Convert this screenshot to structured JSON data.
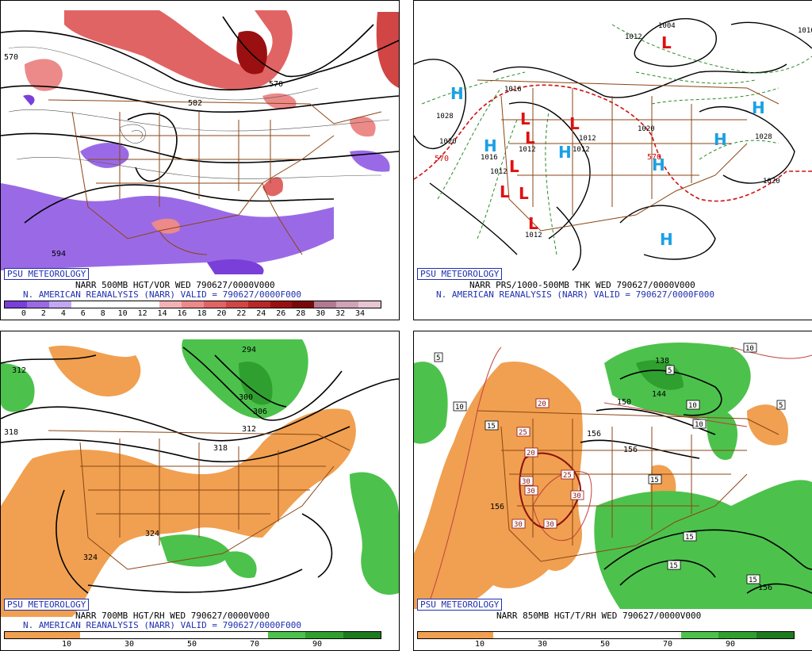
{
  "panels": {
    "p1": {
      "badge": "PSU METEOROLOGY",
      "line1": "NARR 500MB HGT/VOR WED 790627/0000V000",
      "line2": "N. AMERICAN REANALYSIS (NARR) VALID = 790627/0000F000",
      "ticks": [
        "0",
        "2",
        "4",
        "6",
        "8",
        "10",
        "12",
        "14",
        "16",
        "18",
        "20",
        "22",
        "24",
        "26",
        "28",
        "30",
        "32",
        "34"
      ],
      "colors": [
        "#7a3fd8",
        "#9a6ae6",
        "#c2a8f2",
        "#ffffff",
        "#ffffff",
        "#ffffff",
        "#ffffff",
        "#f3b3b3",
        "#ec8a8a",
        "#e06464",
        "#d24545",
        "#b82828",
        "#9a1010",
        "#7a0808",
        "#b07a90",
        "#d1a3b7",
        "#e8c5d3"
      ],
      "labels": {
        "c570a": "570",
        "c570b": "570",
        "c582": "582",
        "c594": "594"
      }
    },
    "p2": {
      "badge": "PSU METEOROLOGY",
      "line1": "NARR PRS/1000-500MB THK WED 790627/0000V000",
      "line2": "N. AMERICAN REANALYSIS (NARR) VALID = 790627/0000F000",
      "highs": [
        "H",
        "H",
        "H",
        "H",
        "H",
        "H",
        "H"
      ],
      "lows": [
        "L",
        "L",
        "L",
        "L",
        "L",
        "L",
        "L",
        "L"
      ],
      "labels": {
        "i1004": "1004",
        "i1012a": "1012",
        "i1028a": "1028",
        "i1016a": "1016",
        "i1012b": "1012",
        "i1012c": "1012",
        "i1012d": "1012",
        "i1016b": "1016",
        "i1012e": "1012",
        "i1020a": "1020",
        "i1028b": "1028",
        "i1020b": "1020",
        "i1016c": "1016",
        "i1012f": "1012",
        "i1020c": "1020",
        "t570a": "570",
        "t570b": "570"
      }
    },
    "p3": {
      "badge": "PSU METEOROLOGY",
      "line1": "NARR 700MB HGT/RH WED 790627/0000V000",
      "line2": "N. AMERICAN REANALYSIS (NARR) VALID = 790627/0000F000",
      "ticks": [
        "10",
        "30",
        "50",
        "70",
        "90"
      ],
      "colors": [
        "#f0a050",
        "#f0a050",
        "#ffffff",
        "#ffffff",
        "#ffffff",
        "#ffffff",
        "#ffffff",
        "#4cc24c",
        "#2fa02f",
        "#1e7a1e"
      ],
      "labels": {
        "h294": "294",
        "h312": "312",
        "h318": "318",
        "h300": "300",
        "h306": "306",
        "h312b": "312",
        "h318b": "318",
        "h324": "324",
        "h324b": "324"
      }
    },
    "p4": {
      "badge": "PSU METEOROLOGY",
      "line1": "NARR 850MB HGT/T/RH WED 790627/0000V000",
      "ticks": [
        "10",
        "30",
        "50",
        "70",
        "90"
      ],
      "colors": [
        "#f0a050",
        "#f0a050",
        "#ffffff",
        "#ffffff",
        "#ffffff",
        "#ffffff",
        "#ffffff",
        "#4cc24c",
        "#2fa02f",
        "#1e7a1e"
      ],
      "labels": {
        "g138": "138",
        "g144": "144",
        "g150": "150",
        "g156a": "156",
        "g156b": "156",
        "g156c": "156",
        "g156d": "156"
      },
      "temps": {
        "t5a": "5",
        "t5b": "5",
        "t5c": "5",
        "t10a": "10",
        "t10b": "10",
        "t10c": "10",
        "t10d": "10",
        "t15a": "15",
        "t15b": "15",
        "t15c": "15",
        "t15d": "15",
        "t15e": "15",
        "t20a": "20",
        "t20b": "20",
        "t25a": "25",
        "t25b": "25",
        "t30a": "30",
        "t30b": "30",
        "t30c": "30",
        "t30d": "30",
        "t30e": "30"
      }
    }
  }
}
